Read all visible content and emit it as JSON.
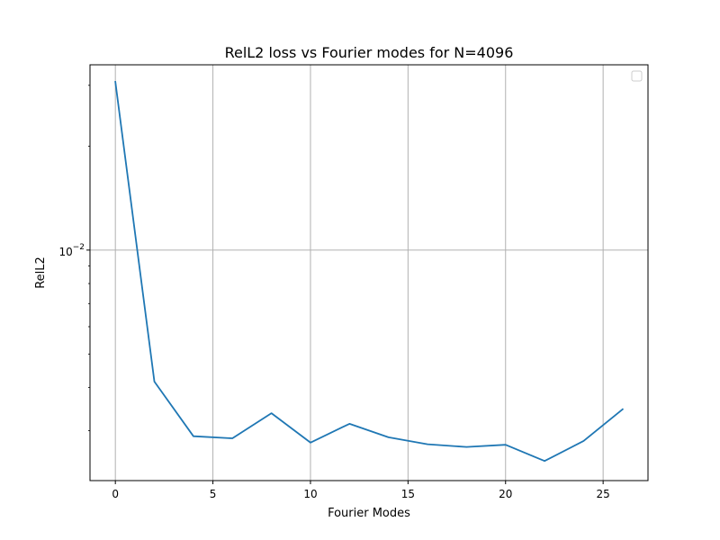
{
  "chart_data": {
    "type": "line",
    "title": "RelL2 loss vs Fourier modes for N=4096",
    "xlabel": "Fourier Modes",
    "ylabel": "RelL2",
    "x_scale": "linear",
    "y_scale": "log",
    "xlim": [
      -1.3,
      27.3
    ],
    "ylim": [
      0.00215,
      0.0344
    ],
    "grid": true,
    "legend": {
      "placement": "top-right",
      "entries": []
    },
    "x_ticks": [
      {
        "value": 0,
        "label": "0"
      },
      {
        "value": 5,
        "label": "5"
      },
      {
        "value": 10,
        "label": "10"
      },
      {
        "value": 15,
        "label": "15"
      },
      {
        "value": 20,
        "label": "20"
      },
      {
        "value": 25,
        "label": "25"
      }
    ],
    "y_ticks": [
      {
        "value": 0.01,
        "base": "10",
        "exponent": "−2"
      }
    ],
    "y_minor_ticks": [
      0.003,
      0.004,
      0.005,
      0.006,
      0.007,
      0.008,
      0.009,
      0.02,
      0.03
    ],
    "series": [
      {
        "color": "#1f77b4",
        "x": [
          0,
          2,
          4,
          6,
          8,
          10,
          12,
          14,
          16,
          18,
          20,
          22,
          24,
          26
        ],
        "y": [
          0.0307,
          0.00416,
          0.00289,
          0.00285,
          0.00337,
          0.00277,
          0.00314,
          0.00287,
          0.00274,
          0.00269,
          0.00273,
          0.00245,
          0.0028,
          0.00346
        ]
      }
    ]
  }
}
